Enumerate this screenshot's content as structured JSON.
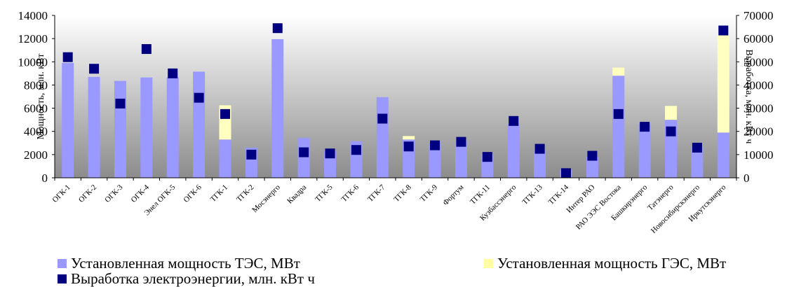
{
  "chart_data": {
    "type": "bar",
    "categories": [
      "ОГК-1",
      "ОГК-2",
      "ОГК-3",
      "ОГК-4",
      "Энел ОГК-5",
      "ОГК-6",
      "ТГК-1",
      "ТГК-2",
      "Мосэнерго",
      "Квадра",
      "ТГК-5",
      "ТГК-6",
      "ТГК-7",
      "ТГК-8",
      "ТГК-9",
      "Фортум",
      "ТГК-11",
      "Кузбассэнерго",
      "ТГК-13",
      "ТГК-14",
      "Интер РАО",
      "РАО ЭЭС Востока",
      "Башкирэнерго",
      "Татэнерго",
      "Новосибирскэнерго",
      "Иркутскэнерго"
    ],
    "series": [
      {
        "name": "Установленная мощность ТЭС, МВт",
        "axis": "left",
        "kind": "stacked-bar",
        "color": "#9999ff",
        "values": [
          9900,
          8700,
          8350,
          8650,
          8650,
          9150,
          3300,
          2600,
          11950,
          3450,
          2350,
          3150,
          6950,
          3300,
          2950,
          3200,
          2000,
          4600,
          2350,
          700,
          1850,
          8800,
          4650,
          5000,
          2650,
          3900
        ]
      },
      {
        "name": "Установленная мощность ГЭС, МВт",
        "axis": "left",
        "kind": "stacked-bar",
        "color": "#ffffc0",
        "values": [
          0,
          0,
          0,
          0,
          0,
          0,
          2950,
          0,
          0,
          0,
          0,
          0,
          0,
          300,
          0,
          0,
          0,
          0,
          0,
          0,
          0,
          700,
          0,
          1200,
          0,
          8400
        ]
      },
      {
        "name": "Выработка электроэнергии, млн. кВт ч",
        "axis": "right",
        "kind": "marker",
        "color": "#000080",
        "values": [
          52000,
          47000,
          32000,
          55500,
          45000,
          34500,
          27500,
          10000,
          64500,
          11000,
          10500,
          12000,
          25500,
          13500,
          14000,
          15500,
          9000,
          24500,
          12500,
          2000,
          9500,
          27500,
          22000,
          20000,
          13000,
          63500
        ]
      }
    ],
    "ylim": [
      0,
      14000
    ],
    "y2lim": [
      0,
      70000
    ],
    "yticks": [
      "0",
      "2000",
      "4000",
      "6000",
      "8000",
      "10000",
      "12000",
      "14000"
    ],
    "y2ticks": [
      "0",
      "10000",
      "20000",
      "30000",
      "40000",
      "50000",
      "60000",
      "70000"
    ],
    "ylabel": "Мощность, млн. кВт",
    "y2label": "Выработка, млн. кВт ч",
    "grid": false,
    "background": "gradient-gray",
    "legend_position": "bottom",
    "legend": [
      "Установленная мощность ТЭС, МВт",
      "Установленная мощность ГЭС, МВт",
      "Выработка электроэнергии, млн. кВт ч"
    ]
  }
}
